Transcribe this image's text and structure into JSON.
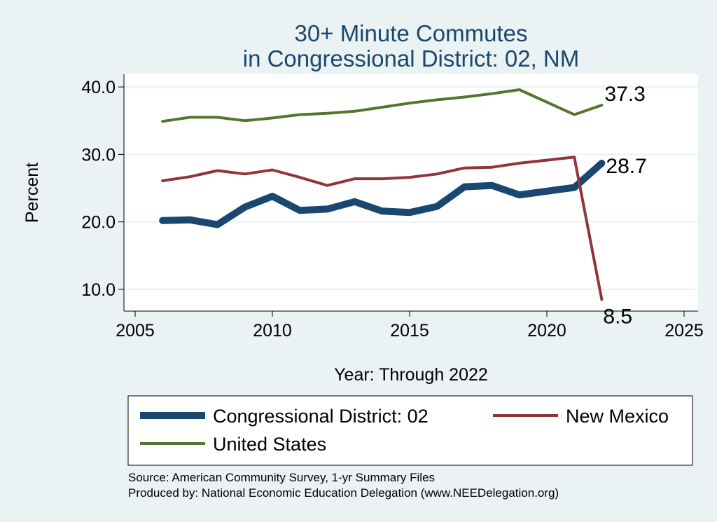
{
  "chart_data": {
    "type": "line",
    "title_line1": "30+ Minute Commutes",
    "title_line2": "in Congressional District:  02, NM",
    "xlabel": "Year: Through 2022",
    "ylabel": "Percent",
    "xlim": [
      2005,
      2025
    ],
    "ylim": [
      8,
      41.5
    ],
    "x_ticks": [
      "2005",
      "2010",
      "2015",
      "2020",
      "2025"
    ],
    "y_ticks": [
      "10.0",
      "20.0",
      "30.0",
      "40.0"
    ],
    "grid": true,
    "legend_position": "bottom",
    "series": [
      {
        "name": "Congressional District:  02",
        "color": "#1a476f",
        "x": [
          2006,
          2007,
          2008,
          2009,
          2010,
          2011,
          2012,
          2013,
          2014,
          2015,
          2016,
          2017,
          2018,
          2019,
          2021,
          2022
        ],
        "values": [
          20.2,
          20.3,
          19.6,
          22.2,
          23.8,
          21.7,
          21.9,
          23.0,
          21.6,
          21.4,
          22.3,
          25.2,
          25.4,
          24.0,
          25.1,
          28.7
        ],
        "end_label": "28.7"
      },
      {
        "name": "New Mexico",
        "color": "#90353b",
        "x": [
          2006,
          2007,
          2008,
          2009,
          2010,
          2011,
          2012,
          2013,
          2014,
          2015,
          2016,
          2017,
          2018,
          2019,
          2021,
          2022
        ],
        "values": [
          26.1,
          26.7,
          27.6,
          27.1,
          27.7,
          26.6,
          25.4,
          26.4,
          26.4,
          26.6,
          27.1,
          28.0,
          28.1,
          28.7,
          29.6,
          8.5
        ],
        "end_label": "8.5"
      },
      {
        "name": "United States",
        "color": "#55752f",
        "x": [
          2006,
          2007,
          2008,
          2009,
          2010,
          2011,
          2012,
          2013,
          2014,
          2015,
          2016,
          2017,
          2018,
          2019,
          2021,
          2022
        ],
        "values": [
          34.9,
          35.5,
          35.5,
          35.0,
          35.4,
          35.9,
          36.1,
          36.4,
          37.0,
          37.6,
          38.1,
          38.5,
          39.0,
          39.6,
          35.9,
          37.3
        ],
        "end_label": "37.3"
      }
    ],
    "source_line1": "Source: American Community Survey, 1-yr Summary Files",
    "source_line2": "Produced by: National Economic Education Delegation (www.NEEDelegation.org)"
  }
}
